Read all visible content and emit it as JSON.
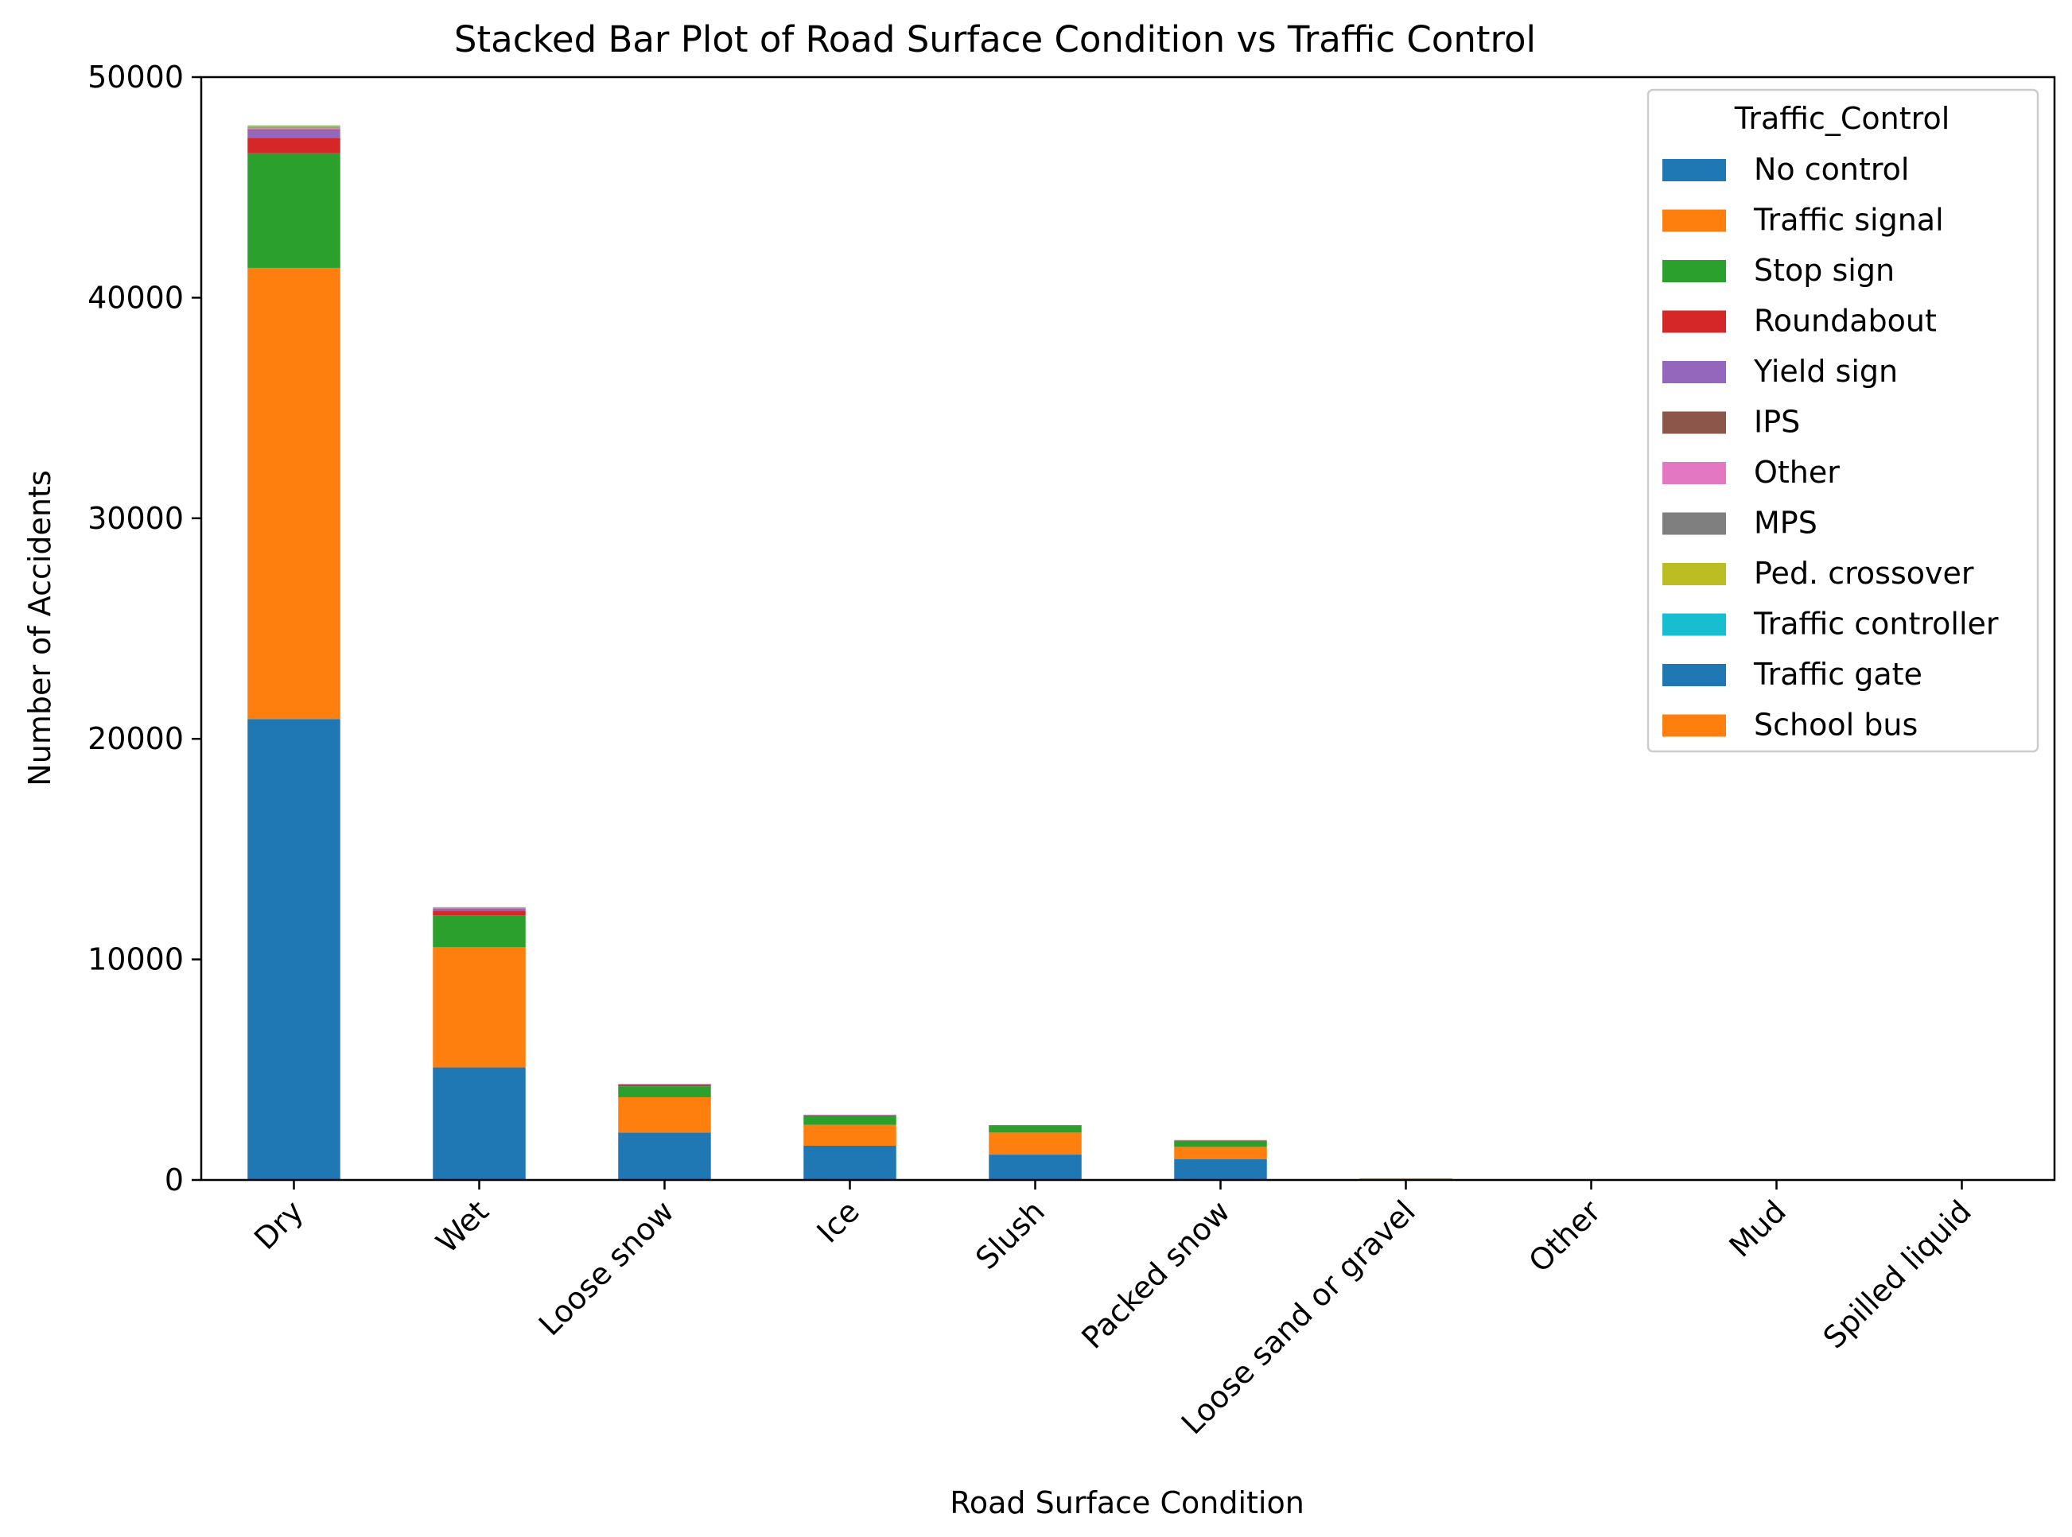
{
  "chart_data": {
    "type": "bar",
    "stacked": true,
    "title": "Stacked Bar Plot of Road Surface Condition vs Traffic Control",
    "xlabel": "Road Surface Condition",
    "ylabel": "Number of Accidents",
    "ylim": [
      0,
      50000
    ],
    "yticks": [
      "0",
      "10000",
      "20000",
      "30000",
      "40000",
      "50000"
    ],
    "grid": false,
    "legend": {
      "title": "Traffic_Control",
      "placement": "top-right"
    },
    "categories": [
      "Dry",
      "Wet",
      "Loose snow",
      "Ice",
      "Slush",
      "Packed snow",
      "Loose sand or gravel",
      "Other",
      "Mud",
      "Spilled liquid"
    ],
    "series": [
      {
        "name": "No control",
        "color": "#1f77b4",
        "values": [
          20900,
          5100,
          2150,
          1550,
          1150,
          950,
          35,
          10,
          8,
          4
        ]
      },
      {
        "name": "Traffic signal",
        "color": "#ff7f0e",
        "values": [
          20450,
          5450,
          1600,
          950,
          1000,
          550,
          20,
          6,
          3,
          2
        ]
      },
      {
        "name": "Stop sign",
        "color": "#2ca02c",
        "values": [
          5200,
          1450,
          500,
          400,
          300,
          280,
          10,
          3,
          2,
          1
        ]
      },
      {
        "name": "Roundabout",
        "color": "#d62728",
        "values": [
          700,
          200,
          60,
          30,
          20,
          15,
          1,
          0,
          0,
          0
        ]
      },
      {
        "name": "Yield sign",
        "color": "#9467bd",
        "values": [
          330,
          100,
          30,
          20,
          12,
          10,
          1,
          0,
          0,
          0
        ]
      },
      {
        "name": "IPS",
        "color": "#8c564b",
        "values": [
          50,
          15,
          5,
          3,
          2,
          2,
          0,
          0,
          0,
          0
        ]
      },
      {
        "name": "Other",
        "color": "#e377c2",
        "values": [
          60,
          20,
          6,
          4,
          3,
          2,
          0,
          0,
          0,
          0
        ]
      },
      {
        "name": "MPS",
        "color": "#7f7f7f",
        "values": [
          30,
          10,
          3,
          2,
          1,
          1,
          0,
          0,
          0,
          0
        ]
      },
      {
        "name": "Ped. crossover",
        "color": "#bcbd22",
        "values": [
          70,
          20,
          5,
          3,
          2,
          2,
          0,
          0,
          0,
          0
        ]
      },
      {
        "name": "Traffic controller",
        "color": "#17becf",
        "values": [
          10,
          3,
          1,
          1,
          0,
          0,
          0,
          0,
          0,
          0
        ]
      },
      {
        "name": "Traffic gate",
        "color": "#1f77b4",
        "values": [
          5,
          1,
          0,
          0,
          0,
          0,
          0,
          0,
          0,
          0
        ]
      },
      {
        "name": "School bus",
        "color": "#ff7f0e",
        "values": [
          5,
          1,
          0,
          0,
          0,
          0,
          0,
          0,
          0,
          0
        ]
      }
    ]
  }
}
